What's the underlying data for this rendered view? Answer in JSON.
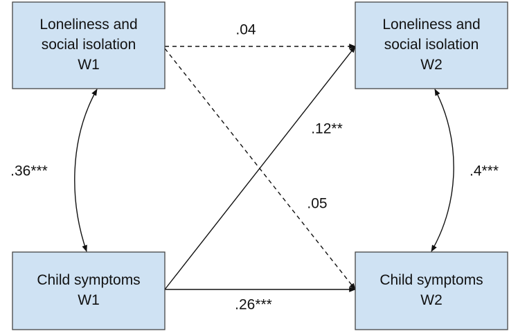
{
  "nodes": [
    {
      "id": "lw1",
      "lines": [
        "Loneliness and",
        "social isolation",
        "W1"
      ]
    },
    {
      "id": "lw2",
      "lines": [
        "Loneliness and",
        "social isolation",
        "W2"
      ]
    },
    {
      "id": "cw1",
      "lines": [
        "Child symptoms",
        "W1"
      ]
    },
    {
      "id": "cw2",
      "lines": [
        "Child symptoms",
        "W2"
      ]
    }
  ],
  "edges": [
    {
      "label": ".04"
    },
    {
      "label": ".05"
    },
    {
      "label": ".12**"
    },
    {
      "label": ".26***"
    },
    {
      "label": ".36***"
    },
    {
      "label": ".4***"
    }
  ]
}
